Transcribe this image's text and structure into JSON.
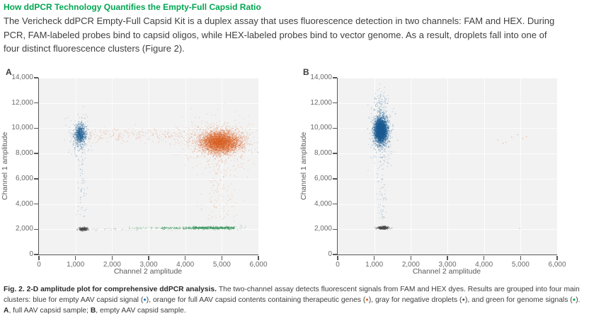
{
  "heading": {
    "text": "How ddPCR Technology Quantifies the Empty-Full Capsid Ratio",
    "color": "#00a651"
  },
  "body": {
    "lines": [
      "The Vericheck ddPCR Empty-Full Capsid Kit is a duplex assay that uses fluorescence detection in two channels: FAM and HEX. During",
      "PCR, FAM-labeled probes bind to capsid oligos, while HEX-labeled probes bind to vector genome. As a result, droplets fall into one of",
      "four distinct fluorescence clusters (Figure 2)."
    ]
  },
  "colors": {
    "grid": "#fdfdfd",
    "plot_bg": "#f2f2f2",
    "axis": "#58585a",
    "points": {
      "blue": "#1b5c92",
      "orange": "#d8591b",
      "gray": "#4b4b4d",
      "green": "#218a4c"
    },
    "caption_dots": {
      "blue": "#1b75bc",
      "orange": "#e2611c",
      "gray": "#58585a",
      "green": "#00a651"
    }
  },
  "chart_data": [
    {
      "type": "scatter",
      "panel": "A",
      "description": "full AAV capsid sample",
      "xlabel": "Channel 2 amplitude",
      "ylabel": "Channel 1 amplitude",
      "xlim": [
        0,
        6000
      ],
      "ylim": [
        0,
        14000
      ],
      "x_ticks": [
        0,
        1000,
        2000,
        3000,
        4000,
        5000,
        6000
      ],
      "x_tick_labels": [
        "0",
        "1,000",
        "2,000",
        "3,000",
        "4,000",
        "5,000",
        "6,000"
      ],
      "y_ticks": [
        0,
        2000,
        4000,
        6000,
        8000,
        10000,
        12000,
        14000
      ],
      "y_tick_labels": [
        "0",
        "2,000",
        "4,000",
        "6,000",
        "8,000",
        "10,000",
        "12,000",
        "14,000"
      ],
      "grid": true,
      "clusters": [
        {
          "name": "empty-capsid-blue-core",
          "dist": "normal",
          "center": [
            1130,
            9500
          ],
          "sd": [
            75,
            380
          ],
          "n": 650,
          "color": "blue",
          "alpha": 0.4,
          "size": 1.2
        },
        {
          "name": "empty-capsid-blue-halo",
          "dist": "normal",
          "center": [
            1140,
            9450
          ],
          "sd": [
            140,
            850
          ],
          "n": 220,
          "color": "blue",
          "alpha": 0.3,
          "size": 1.1
        },
        {
          "name": "empty-capsid-blue-lower-tail",
          "dist": "vband",
          "x_center": 1190,
          "x_sd": 70,
          "y_range": [
            3000,
            7800
          ],
          "n": 50,
          "color": "blue",
          "alpha": 0.35,
          "size": 1.1
        },
        {
          "name": "full-capsid-orange-core",
          "dist": "normal",
          "center": [
            4950,
            8900
          ],
          "sd": [
            260,
            420
          ],
          "n": 3600,
          "color": "orange",
          "alpha": 0.32,
          "size": 1.2
        },
        {
          "name": "full-capsid-orange-halo",
          "dist": "normal",
          "center": [
            4930,
            8850
          ],
          "sd": [
            520,
            900
          ],
          "n": 800,
          "color": "orange",
          "alpha": 0.25,
          "size": 1.1
        },
        {
          "name": "orange-horizontal-bridge",
          "dist": "hband",
          "y_center": 9450,
          "y_sd": 280,
          "x_range": [
            1350,
            4250
          ],
          "n": 230,
          "color": "orange",
          "alpha": 0.28,
          "size": 1.1
        },
        {
          "name": "orange-lower-tail",
          "dist": "vband",
          "x_center": 4900,
          "x_sd": 280,
          "y_range": [
            2600,
            7400
          ],
          "n": 120,
          "color": "orange",
          "alpha": 0.28,
          "size": 1.1
        },
        {
          "name": "negative-droplets-gray",
          "dist": "normal",
          "center": [
            1210,
            2010
          ],
          "sd": [
            55,
            60
          ],
          "n": 300,
          "color": "gray",
          "alpha": 0.5,
          "size": 1.2
        },
        {
          "name": "gray-row-sparse",
          "dist": "hband",
          "y_center": 2000,
          "y_sd": 55,
          "x_range": [
            1450,
            2700
          ],
          "n": 28,
          "color": "gray",
          "alpha": 0.35,
          "size": 1
        },
        {
          "name": "genome-green-dense",
          "dist": "hband",
          "y_center": 2110,
          "y_sd": 55,
          "x_range": [
            4200,
            5350
          ],
          "n": 420,
          "color": "green",
          "alpha": 0.5,
          "size": 1.1
        },
        {
          "name": "genome-green-mid",
          "dist": "hband",
          "y_center": 2100,
          "y_sd": 55,
          "x_range": [
            3350,
            4200
          ],
          "n": 130,
          "color": "green",
          "alpha": 0.45,
          "size": 1.1
        },
        {
          "name": "genome-green-sparse",
          "dist": "hband",
          "y_center": 2090,
          "y_sd": 50,
          "x_range": [
            2450,
            3350
          ],
          "n": 45,
          "color": "green",
          "alpha": 0.4,
          "size": 1
        },
        {
          "name": "genome-green-right-sparse",
          "dist": "hband",
          "y_center": 2150,
          "y_sd": 120,
          "x_range": [
            5350,
            5650
          ],
          "n": 12,
          "color": "green",
          "alpha": 0.4,
          "size": 1
        }
      ]
    },
    {
      "type": "scatter",
      "panel": "B",
      "description": "empty AAV capsid sample",
      "xlabel": "Channel 2 amplitude",
      "ylabel": "Channel 1 amplitude",
      "xlim": [
        0,
        6000
      ],
      "ylim": [
        0,
        14000
      ],
      "x_ticks": [
        0,
        1000,
        2000,
        3000,
        4000,
        5000,
        6000
      ],
      "x_tick_labels": [
        "0",
        "1,000",
        "2,000",
        "3,000",
        "4,000",
        "5,000",
        "6,000"
      ],
      "y_ticks": [
        0,
        2000,
        4000,
        6000,
        8000,
        10000,
        12000,
        14000
      ],
      "y_tick_labels": [
        "0",
        "2,000",
        "4,000",
        "6,000",
        "8,000",
        "10,000",
        "12,000",
        "14,000"
      ],
      "grid": true,
      "clusters": [
        {
          "name": "empty-capsid-blue-core",
          "dist": "normal",
          "center": [
            1180,
            9850
          ],
          "sd": [
            85,
            520
          ],
          "n": 2600,
          "color": "blue",
          "alpha": 0.4,
          "size": 1.2
        },
        {
          "name": "empty-capsid-blue-inner",
          "dist": "normal",
          "center": [
            1175,
            9800
          ],
          "sd": [
            60,
            350
          ],
          "n": 1200,
          "color": "blue",
          "alpha": 0.45,
          "size": 1.2
        },
        {
          "name": "empty-capsid-blue-halo",
          "dist": "normal",
          "center": [
            1190,
            9800
          ],
          "sd": [
            140,
            1050
          ],
          "n": 500,
          "color": "blue",
          "alpha": 0.3,
          "size": 1.1
        },
        {
          "name": "blue-top-sparse",
          "dist": "normal",
          "center": [
            1190,
            12150
          ],
          "sd": [
            90,
            420
          ],
          "n": 70,
          "color": "blue",
          "alpha": 0.35,
          "size": 1
        },
        {
          "name": "blue-lower-tail",
          "dist": "vband",
          "x_center": 1230,
          "x_sd": 70,
          "y_range": [
            2700,
            8000
          ],
          "n": 80,
          "color": "blue",
          "alpha": 0.35,
          "size": 1
        },
        {
          "name": "negative-droplets-gray",
          "dist": "normal",
          "center": [
            1240,
            2110
          ],
          "sd": [
            70,
            55
          ],
          "n": 340,
          "color": "gray",
          "alpha": 0.55,
          "size": 1.2
        },
        {
          "name": "orange-sparse-outliers",
          "dist": "points",
          "points": [
            [
              4380,
              9050
            ],
            [
              4600,
              8900
            ],
            [
              4760,
              9300
            ],
            [
              4920,
              9480
            ],
            [
              5060,
              9180
            ],
            [
              5160,
              9320
            ],
            [
              4520,
              8820
            ],
            [
              4980,
              2050
            ]
          ],
          "color": "orange",
          "alpha": 0.45,
          "size": 1.2
        }
      ]
    }
  ],
  "caption": {
    "segments": [
      {
        "text": "Fig. 2. 2-D amplitude plot for comprehensive ddPCR analysis. ",
        "bold": true
      },
      {
        "text": "The two-channel assay detects fluorescent signals from FAM and HEX dyes. Results are grouped into four main clusters: blue for empty AAV capsid signal ("
      },
      {
        "dot": "blue"
      },
      {
        "text": "), orange for full AAV capsid contents containing therapeutic genes ("
      },
      {
        "dot": "orange"
      },
      {
        "text": "), gray for negative droplets ("
      },
      {
        "dot": "gray"
      },
      {
        "text": "), and green for genome signals ("
      },
      {
        "dot": "green"
      },
      {
        "text": "). "
      },
      {
        "text": "A",
        "bold": true
      },
      {
        "text": ", full AAV capsid sample; "
      },
      {
        "text": "B",
        "bold": true
      },
      {
        "text": ", empty AAV capsid sample."
      }
    ]
  }
}
